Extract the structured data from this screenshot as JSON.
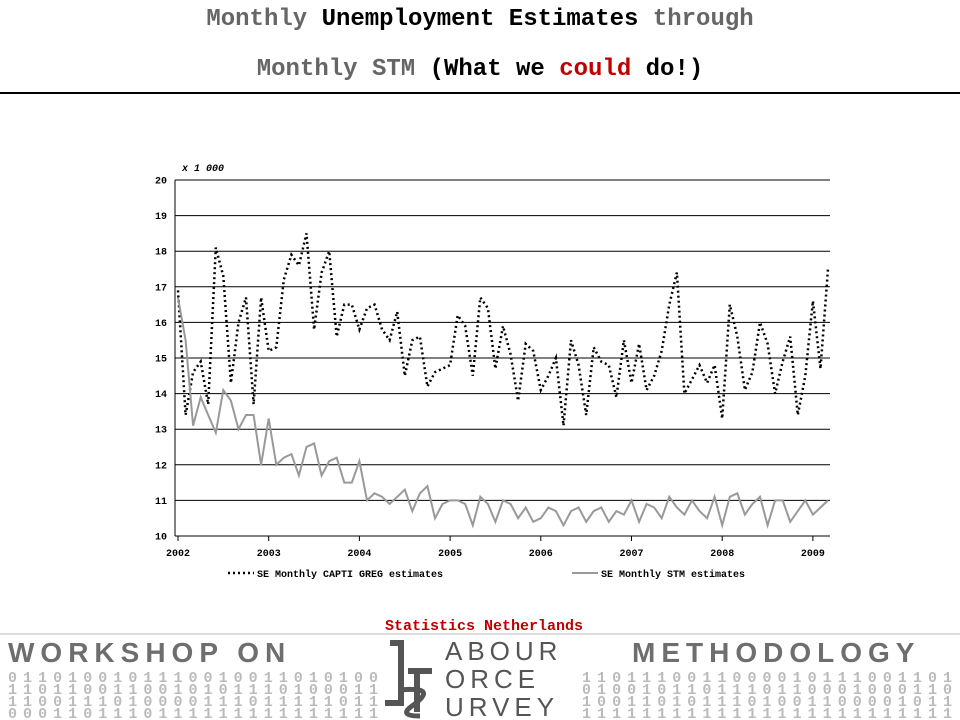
{
  "header": {
    "title_lines": [
      [
        "Monthly",
        "Unemployment Estimates",
        "through"
      ],
      [
        "Monthly STM",
        "(What we",
        "could",
        "do!)"
      ]
    ]
  },
  "chart_data": {
    "type": "line",
    "y_unit_label": "x 1 000",
    "categories": [
      "2002",
      null,
      null,
      null,
      null,
      null,
      null,
      null,
      null,
      null,
      null,
      null,
      "2003",
      null,
      null,
      null,
      null,
      null,
      null,
      null,
      null,
      null,
      null,
      null,
      "2004",
      null,
      null,
      null,
      null,
      null,
      null,
      null,
      null,
      null,
      null,
      null,
      "2005",
      null,
      null,
      null,
      null,
      null,
      null,
      null,
      null,
      null,
      null,
      null,
      "2006",
      null,
      null,
      null,
      null,
      null,
      null,
      null,
      null,
      null,
      null,
      null,
      "2007",
      null,
      null,
      null,
      null,
      null,
      null,
      null,
      null,
      null,
      null,
      null,
      "2008",
      null,
      null,
      null,
      null,
      null,
      null,
      null,
      null,
      null,
      null,
      null,
      "2009",
      null,
      null
    ],
    "series": [
      {
        "name": "SE Monthly CAPTI GREG estimates",
        "color": "#000000",
        "dash": "dotted",
        "values": [
          16.9,
          13.4,
          14.6,
          14.9,
          13.7,
          18.1,
          17.3,
          14.3,
          16.0,
          16.7,
          13.7,
          16.7,
          15.2,
          15.3,
          17.2,
          17.9,
          17.6,
          18.5,
          15.8,
          17.4,
          18.0,
          15.6,
          16.5,
          16.5,
          15.8,
          16.4,
          16.5,
          15.8,
          15.5,
          16.3,
          14.5,
          15.5,
          15.6,
          14.2,
          14.6,
          14.7,
          14.8,
          16.2,
          15.9,
          14.5,
          16.7,
          16.4,
          14.7,
          15.9,
          15.1,
          13.8,
          15.4,
          15.2,
          14.1,
          14.5,
          15.0,
          13.1,
          15.5,
          14.8,
          13.4,
          15.3,
          14.9,
          14.8,
          13.9,
          15.5,
          14.3,
          15.4,
          14.1,
          14.5,
          15.2,
          16.5,
          17.4,
          14.0,
          14.4,
          14.8,
          14.3,
          14.8,
          13.3,
          16.5,
          15.6,
          14.1,
          14.6,
          16.0,
          15.4,
          14.0,
          14.9,
          15.6,
          13.4,
          14.5,
          16.6,
          14.7,
          17.5
        ]
      },
      {
        "name": "SE Monthly STM estimates",
        "color": "#999999",
        "dash": "solid",
        "values": [
          16.7,
          15.5,
          13.1,
          13.9,
          13.4,
          12.9,
          14.1,
          13.8,
          13.0,
          13.4,
          13.4,
          12.0,
          13.3,
          12.0,
          12.2,
          12.3,
          11.7,
          12.5,
          12.6,
          11.7,
          12.1,
          12.2,
          11.5,
          11.5,
          12.1,
          11.0,
          11.2,
          11.1,
          10.9,
          11.1,
          11.3,
          10.7,
          11.2,
          11.4,
          10.5,
          10.9,
          11.0,
          11.0,
          10.9,
          10.3,
          11.1,
          10.9,
          10.4,
          11.0,
          10.9,
          10.5,
          10.8,
          10.4,
          10.5,
          10.8,
          10.7,
          10.3,
          10.7,
          10.8,
          10.4,
          10.7,
          10.8,
          10.4,
          10.7,
          10.6,
          11.0,
          10.4,
          10.9,
          10.8,
          10.5,
          11.1,
          10.8,
          10.6,
          11.0,
          10.7,
          10.5,
          11.1,
          10.3,
          11.1,
          11.2,
          10.6,
          10.9,
          11.1,
          10.3,
          11.0,
          11.0,
          10.4,
          10.7,
          11.0,
          10.6,
          10.8,
          11.0
        ]
      }
    ],
    "ylim": [
      10,
      20
    ],
    "yticks": [
      10,
      11,
      12,
      13,
      14,
      15,
      16,
      17,
      18,
      19,
      20
    ],
    "grid": true
  },
  "footer": {
    "source": "Statistics Netherlands",
    "banner_left": "WORKSHOP ON",
    "banner_right": "METHODOLOGY",
    "logo_words": [
      "ABOUR",
      "ORCE",
      "URVEY"
    ],
    "binary_left": [
      "0110100101110010011010100",
      "1101100110010101110100011",
      "1100111010000111011111011",
      "0001101110111111111111111"
    ],
    "binary_right": [
      "1101110011000010111001101",
      "0100101101110110001000110",
      "1001101011101001100001011",
      "1111111111111111111111111"
    ]
  }
}
